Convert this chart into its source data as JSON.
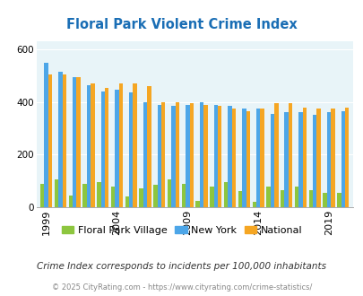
{
  "title": "Floral Park Violent Crime Index",
  "years": [
    1999,
    2000,
    2001,
    2002,
    2003,
    2004,
    2005,
    2006,
    2007,
    2008,
    2009,
    2010,
    2011,
    2012,
    2013,
    2014,
    2015,
    2016,
    2017,
    2018,
    2019,
    2020
  ],
  "floral_park": [
    90,
    105,
    45,
    90,
    95,
    80,
    40,
    70,
    85,
    105,
    90,
    25,
    80,
    95,
    60,
    20,
    80,
    65,
    80,
    65,
    55,
    55
  ],
  "new_york": [
    550,
    515,
    495,
    465,
    440,
    445,
    435,
    400,
    390,
    385,
    390,
    400,
    390,
    385,
    375,
    375,
    355,
    360,
    360,
    350,
    360,
    365
  ],
  "national": [
    505,
    505,
    495,
    470,
    455,
    470,
    470,
    460,
    400,
    400,
    395,
    390,
    385,
    375,
    365,
    375,
    395,
    395,
    380,
    375,
    375,
    380
  ],
  "bar_width": 0.28,
  "colors": {
    "floral_park": "#8dc63f",
    "new_york": "#4da6e8",
    "national": "#f5a623"
  },
  "bg_color": "#e8f4f8",
  "ylim": [
    0,
    630
  ],
  "yticks": [
    0,
    200,
    400,
    600
  ],
  "tick_years": [
    1999,
    2004,
    2009,
    2014,
    2019
  ],
  "legend_labels": [
    "Floral Park Village",
    "New York",
    "National"
  ],
  "footnote1": "Crime Index corresponds to incidents per 100,000 inhabitants",
  "footnote2": "© 2025 CityRating.com - https://www.cityrating.com/crime-statistics/",
  "title_color": "#1a6eb5",
  "footnote1_color": "#333333",
  "footnote2_color": "#888888",
  "figsize": [
    4.06,
    3.3
  ],
  "dpi": 100
}
